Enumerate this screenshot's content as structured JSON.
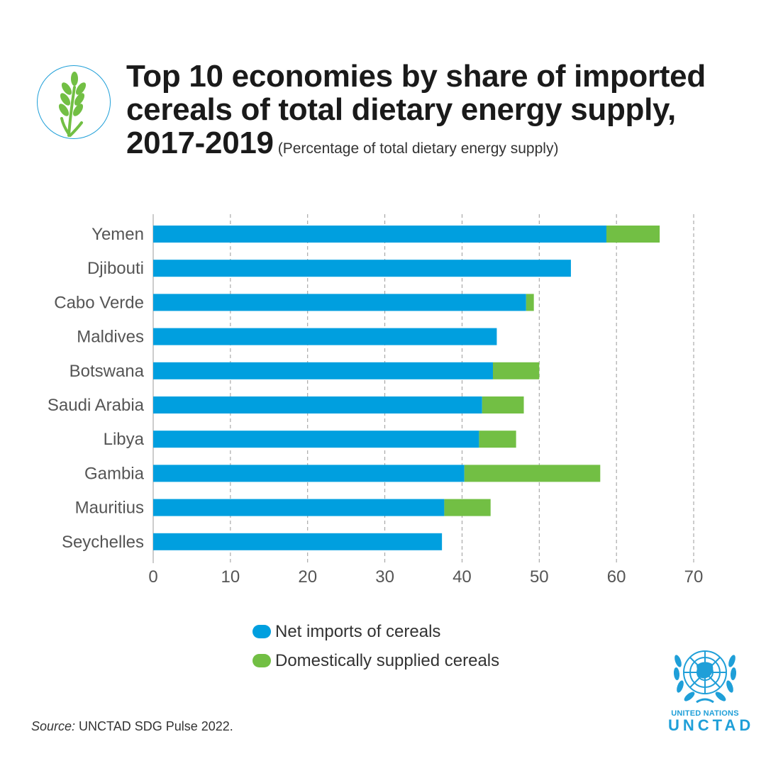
{
  "header": {
    "title_line1": "Top 10 economies by share of imported",
    "title_line2": "cereals of total dietary energy supply,",
    "title_line3": "2017-2019",
    "subtitle": "(Percentage of total dietary energy supply)",
    "logo_icon": "wheat-icon"
  },
  "colors": {
    "net_imports": "#009fdf",
    "domestic": "#72bf44",
    "accent": "#1f9fd8"
  },
  "chart_data": {
    "type": "bar",
    "orientation": "horizontal",
    "stacked": true,
    "categories": [
      "Yemen",
      "Djibouti",
      "Cabo Verde",
      "Maldives",
      "Botswana",
      "Saudi Arabia",
      "Libya",
      "Gambia",
      "Mauritius",
      "Seychelles"
    ],
    "series": [
      {
        "name": "Net imports of cereals",
        "values": [
          58.7,
          54.1,
          48.3,
          44.5,
          44.0,
          42.6,
          42.2,
          40.3,
          37.7,
          37.4
        ]
      },
      {
        "name": "Domestically supplied cereals",
        "values": [
          6.9,
          0,
          1.0,
          0,
          6.0,
          5.4,
          4.8,
          17.6,
          6.0,
          0
        ]
      }
    ],
    "xlim": [
      0,
      70
    ],
    "xticks": [
      0,
      10,
      20,
      30,
      40,
      50,
      60,
      70
    ],
    "grid": "vertical-dashed",
    "legend_position": "bottom"
  },
  "legend": {
    "items": [
      {
        "label": "Net imports of cereals"
      },
      {
        "label": "Domestically supplied cereals"
      }
    ]
  },
  "footer": {
    "source_label": "Source:",
    "source_text": " UNCTAD SDG Pulse 2022.",
    "org_line1": "UNITED NATIONS",
    "org_line2": "UNCTAD",
    "org_icon": "un-emblem-icon"
  }
}
